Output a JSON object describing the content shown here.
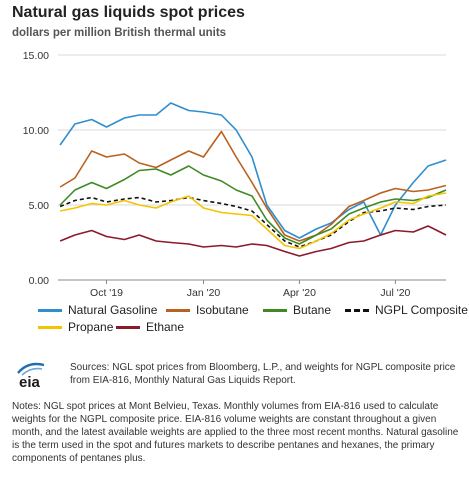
{
  "header": {
    "title": "Natural gas liquids spot prices",
    "subtitle": "dollars per million British thermal units"
  },
  "logo": {
    "text": "eia"
  },
  "sources_text": "Sources: NGL spot prices from Bloomberg, L.P., and weights for NGPL composite price from EIA-816, Monthly Natural Gas Liquids Report.",
  "notes_text": "Notes: NGL spot prices at Mont Belvieu, Texas. Monthly volumes from EIA-816 used to calculate weights for the NGPL composite price. EIA-816 volume weights are constant throughout a given month, and the latest available weights are applied to the three most recent months. Natural gasoline is the term used in the spot and futures markets to describe pentanes and hexanes, the primary components of pentanes plus.",
  "chart_data": {
    "type": "line",
    "x_ticks": [
      "Oct '19",
      "Jan '20",
      "Apr '20",
      "Jul '20"
    ],
    "y_ticks": [
      "15.00",
      "10.00",
      "5.00",
      "0.00"
    ],
    "ylim": [
      0,
      15
    ],
    "grid": true,
    "legend_position": "bottom",
    "x_range": [
      "2019-08-30",
      "2020-09-01"
    ],
    "dates": [
      "2019-09-01",
      "2019-09-15",
      "2019-10-01",
      "2019-10-15",
      "2019-11-01",
      "2019-11-15",
      "2019-12-01",
      "2019-12-15",
      "2020-01-01",
      "2020-01-15",
      "2020-02-01",
      "2020-02-15",
      "2020-03-01",
      "2020-03-15",
      "2020-04-01",
      "2020-04-15",
      "2020-05-01",
      "2020-05-15",
      "2020-06-01",
      "2020-06-15",
      "2020-07-01",
      "2020-07-15",
      "2020-08-01",
      "2020-08-15",
      "2020-09-01"
    ],
    "series": [
      {
        "name": "Natural Gasoline",
        "color": "#2f8ecf",
        "dash": false,
        "values": [
          9.0,
          10.4,
          10.7,
          10.2,
          10.8,
          11.0,
          11.0,
          11.8,
          11.3,
          11.2,
          11.0,
          10.0,
          8.2,
          5.0,
          3.3,
          2.8,
          3.4,
          3.8,
          4.7,
          5.2,
          3.0,
          5.0,
          6.5,
          7.6,
          8.0
        ]
      },
      {
        "name": "Isobutane",
        "color": "#b9611f",
        "dash": false,
        "values": [
          6.2,
          6.8,
          8.6,
          8.2,
          8.4,
          7.8,
          7.5,
          8.0,
          8.6,
          8.2,
          9.9,
          8.2,
          6.5,
          4.8,
          3.0,
          2.6,
          3.0,
          3.7,
          4.9,
          5.3,
          5.8,
          6.1,
          5.9,
          6.0,
          6.3
        ]
      },
      {
        "name": "Butane",
        "color": "#3f8a23",
        "dash": false,
        "values": [
          5.0,
          6.0,
          6.5,
          6.1,
          6.7,
          7.3,
          7.4,
          7.0,
          7.6,
          7.0,
          6.6,
          6.0,
          5.6,
          4.0,
          2.8,
          2.4,
          3.0,
          3.4,
          4.4,
          4.8,
          5.2,
          5.4,
          5.3,
          5.5,
          6.0
        ]
      },
      {
        "name": "NGPL Composite",
        "color": "#111111",
        "dash": true,
        "values": [
          4.9,
          5.3,
          5.5,
          5.2,
          5.4,
          5.5,
          5.2,
          5.3,
          5.5,
          5.3,
          5.1,
          4.9,
          4.6,
          3.7,
          2.6,
          2.2,
          2.6,
          3.0,
          3.9,
          4.5,
          4.6,
          4.8,
          4.7,
          4.9,
          5.0
        ]
      },
      {
        "name": "Propane",
        "color": "#f5c400",
        "dash": false,
        "values": [
          4.6,
          4.8,
          5.1,
          5.0,
          5.3,
          5.0,
          4.8,
          5.2,
          5.6,
          4.8,
          4.5,
          4.4,
          4.3,
          3.4,
          2.3,
          2.1,
          2.6,
          3.1,
          4.0,
          4.4,
          4.8,
          5.2,
          5.1,
          5.6,
          5.8
        ]
      },
      {
        "name": "Ethane",
        "color": "#8b1a2b",
        "dash": false,
        "values": [
          2.6,
          3.0,
          3.3,
          2.9,
          2.7,
          3.0,
          2.6,
          2.5,
          2.4,
          2.2,
          2.3,
          2.2,
          2.4,
          2.3,
          1.9,
          1.6,
          1.9,
          2.1,
          2.5,
          2.6,
          3.0,
          3.3,
          3.2,
          3.6,
          3.0
        ]
      }
    ]
  }
}
